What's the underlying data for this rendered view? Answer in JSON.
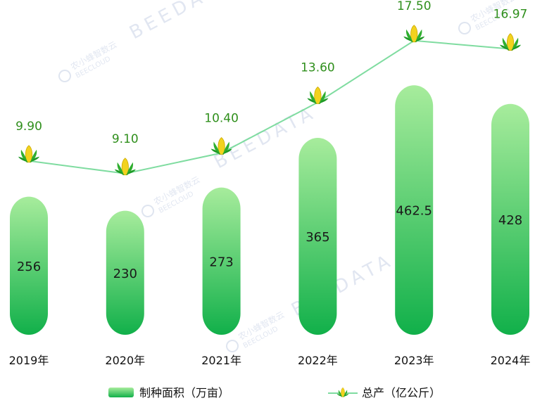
{
  "chart_data": {
    "type": "bar+line",
    "categories": [
      "2019年",
      "2020年",
      "2021年",
      "2022年",
      "2023年",
      "2024年"
    ],
    "series": [
      {
        "name": "制种面积（万亩）",
        "type": "bar",
        "values": [
          256,
          230,
          273,
          365,
          462.5,
          428
        ]
      },
      {
        "name": "总产（亿公斤）",
        "type": "line",
        "values": [
          9.9,
          9.1,
          10.4,
          13.6,
          17.5,
          16.97
        ]
      }
    ],
    "bar_labels": [
      "256",
      "230",
      "273",
      "365",
      "462.5",
      "428"
    ],
    "line_labels": [
      "9.90",
      "9.10",
      "10.40",
      "13.60",
      "17.50",
      "16.97"
    ],
    "legend_position": "bottom",
    "colors": {
      "bar_top": "#a7ec9c",
      "bar_bottom": "#11b04a",
      "line": "#7fdca0",
      "label": "#2f8f1c"
    }
  },
  "watermark": {
    "logo_text": "农小蜂智数云",
    "logo_sub": "BEECLOUD",
    "text": "BEEDATA"
  }
}
